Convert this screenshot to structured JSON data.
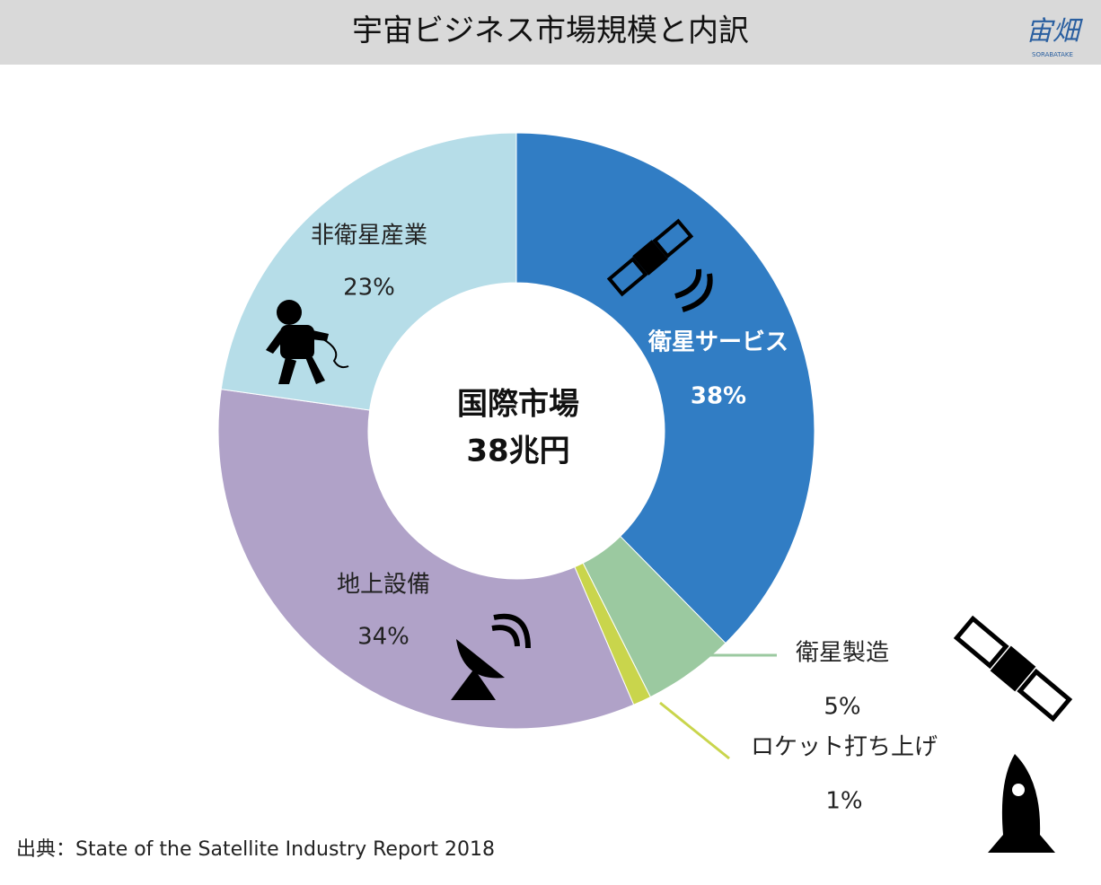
{
  "header": {
    "title": "宇宙ビジネス市場規模と内訳",
    "logo": "宙畑",
    "logo_sub": "SORABATAKE"
  },
  "chart_data": {
    "type": "donut",
    "center_label": [
      "国際市場",
      "38兆円"
    ],
    "categories": [
      "衛星サービス",
      "衛星製造",
      "ロケット打ち上げ",
      "地上設備",
      "非衛星産業"
    ],
    "values": [
      38,
      5,
      1,
      34,
      23
    ],
    "value_labels": [
      "38%",
      "5%",
      "1%",
      "34%",
      "23%"
    ],
    "colors": [
      "#317dc4",
      "#9bc9a0",
      "#c9d54c",
      "#b0a2c8",
      "#b6dde8"
    ]
  },
  "footer": {
    "source": "出典：State of the Satellite Industry Report 2018"
  }
}
